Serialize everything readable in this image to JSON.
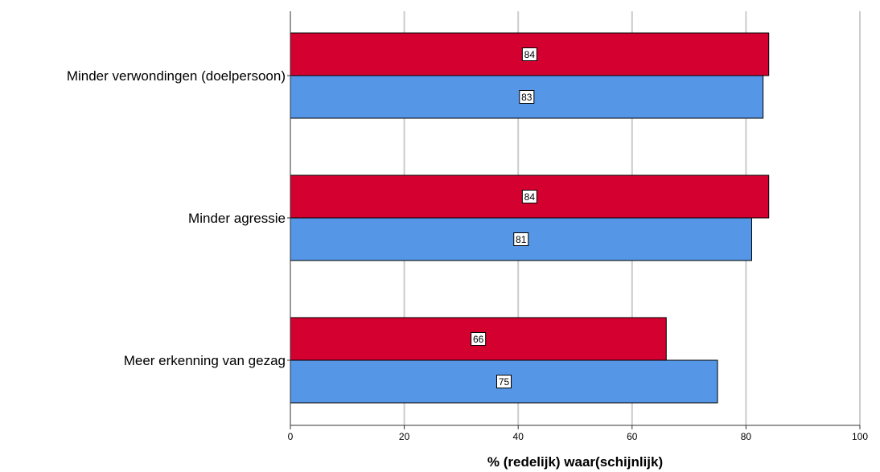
{
  "chart_data": {
    "type": "bar",
    "orientation": "horizontal",
    "categories": [
      "Minder verwondingen (doelpersoon)",
      "Minder agressie",
      "Meer erkenning van gezag"
    ],
    "series": [
      {
        "values": [
          84,
          84,
          66
        ],
        "color": "#d40030"
      },
      {
        "values": [
          83,
          81,
          75
        ],
        "color": "#5596e6"
      }
    ],
    "xlabel": "% (redelijk) waar(schijnlijk)",
    "xlim": [
      0,
      100
    ],
    "xticks": [
      0,
      20,
      40,
      60,
      80,
      100
    ],
    "grid": "vertical",
    "legend": "none"
  }
}
